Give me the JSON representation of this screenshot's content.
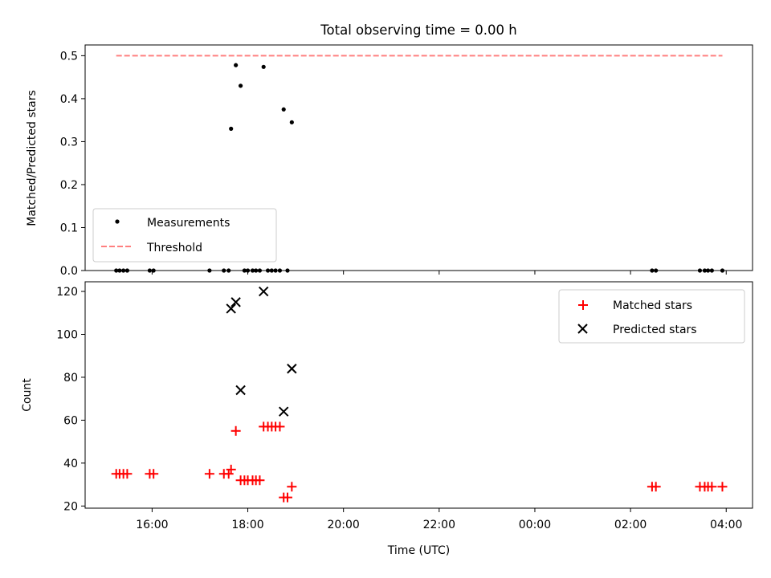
{
  "chart_data": [
    {
      "type": "scatter",
      "title": "Total observing time = 0.00 h",
      "xlabel": "",
      "ylabel": "Matched/Predicted stars",
      "x_unit": "hours (UTC, continuing past midnight)",
      "xlim": [
        14.6,
        28.55
      ],
      "ylim": [
        0,
        0.525
      ],
      "yticks": [
        "0.0",
        "0.1",
        "0.2",
        "0.3",
        "0.4",
        "0.5"
      ],
      "legend_position": "lower-left",
      "series": [
        {
          "name": "Measurements",
          "marker": "dot",
          "color": "#000000",
          "points": [
            [
              15.25,
              0
            ],
            [
              15.32,
              0
            ],
            [
              15.4,
              0
            ],
            [
              15.48,
              0
            ],
            [
              15.95,
              0
            ],
            [
              16.03,
              0
            ],
            [
              17.2,
              0
            ],
            [
              17.5,
              0
            ],
            [
              17.6,
              0
            ],
            [
              17.65,
              0.33
            ],
            [
              17.75,
              0.478
            ],
            [
              17.85,
              0.43
            ],
            [
              17.93,
              0
            ],
            [
              18.0,
              0
            ],
            [
              18.1,
              0
            ],
            [
              18.17,
              0
            ],
            [
              18.25,
              0
            ],
            [
              18.33,
              0.474
            ],
            [
              18.42,
              0
            ],
            [
              18.5,
              0
            ],
            [
              18.58,
              0
            ],
            [
              18.67,
              0
            ],
            [
              18.75,
              0.375
            ],
            [
              18.83,
              0
            ],
            [
              18.92,
              0.345
            ],
            [
              26.45,
              0
            ],
            [
              26.53,
              0
            ],
            [
              27.45,
              0
            ],
            [
              27.55,
              0
            ],
            [
              27.62,
              0
            ],
            [
              27.7,
              0
            ],
            [
              27.92,
              0
            ]
          ]
        },
        {
          "name": "Threshold",
          "marker": "dashed-line",
          "color": "#ff7f7f",
          "points": [
            [
              15.25,
              0.5
            ],
            [
              27.92,
              0.5
            ]
          ]
        }
      ]
    },
    {
      "type": "scatter",
      "title": "",
      "xlabel": "Time (UTC)",
      "ylabel": "Count",
      "x_unit": "hours (UTC, continuing past midnight)",
      "xlim": [
        14.6,
        28.55
      ],
      "ylim": [
        19,
        124.5
      ],
      "yticks": [
        "20",
        "40",
        "60",
        "80",
        "100",
        "120"
      ],
      "xtick_labels": [
        {
          "x": 16,
          "label": "16:00"
        },
        {
          "x": 18,
          "label": "18:00"
        },
        {
          "x": 20,
          "label": "20:00"
        },
        {
          "x": 22,
          "label": "22:00"
        },
        {
          "x": 24,
          "label": "00:00"
        },
        {
          "x": 26,
          "label": "02:00"
        },
        {
          "x": 28,
          "label": "04:00"
        }
      ],
      "legend_position": "upper-right",
      "series": [
        {
          "name": "Matched stars",
          "marker": "plus",
          "color": "#ff0000",
          "points": [
            [
              15.25,
              35
            ],
            [
              15.32,
              35
            ],
            [
              15.4,
              35
            ],
            [
              15.48,
              35
            ],
            [
              15.95,
              35
            ],
            [
              16.03,
              35
            ],
            [
              17.2,
              35
            ],
            [
              17.5,
              35
            ],
            [
              17.6,
              35
            ],
            [
              17.65,
              37
            ],
            [
              17.75,
              55
            ],
            [
              17.85,
              32
            ],
            [
              17.93,
              32
            ],
            [
              18.0,
              32
            ],
            [
              18.1,
              32
            ],
            [
              18.17,
              32
            ],
            [
              18.25,
              32
            ],
            [
              18.33,
              57
            ],
            [
              18.42,
              57
            ],
            [
              18.5,
              57
            ],
            [
              18.58,
              57
            ],
            [
              18.67,
              57
            ],
            [
              18.75,
              24
            ],
            [
              18.83,
              24
            ],
            [
              18.92,
              29
            ],
            [
              26.45,
              29
            ],
            [
              26.53,
              29
            ],
            [
              27.45,
              29
            ],
            [
              27.55,
              29
            ],
            [
              27.62,
              29
            ],
            [
              27.7,
              29
            ],
            [
              27.92,
              29
            ]
          ]
        },
        {
          "name": "Predicted stars",
          "marker": "x",
          "color": "#000000",
          "points": [
            [
              17.65,
              112
            ],
            [
              17.75,
              115
            ],
            [
              17.85,
              74
            ],
            [
              18.33,
              120
            ],
            [
              18.75,
              64
            ],
            [
              18.92,
              84
            ]
          ]
        }
      ]
    }
  ]
}
